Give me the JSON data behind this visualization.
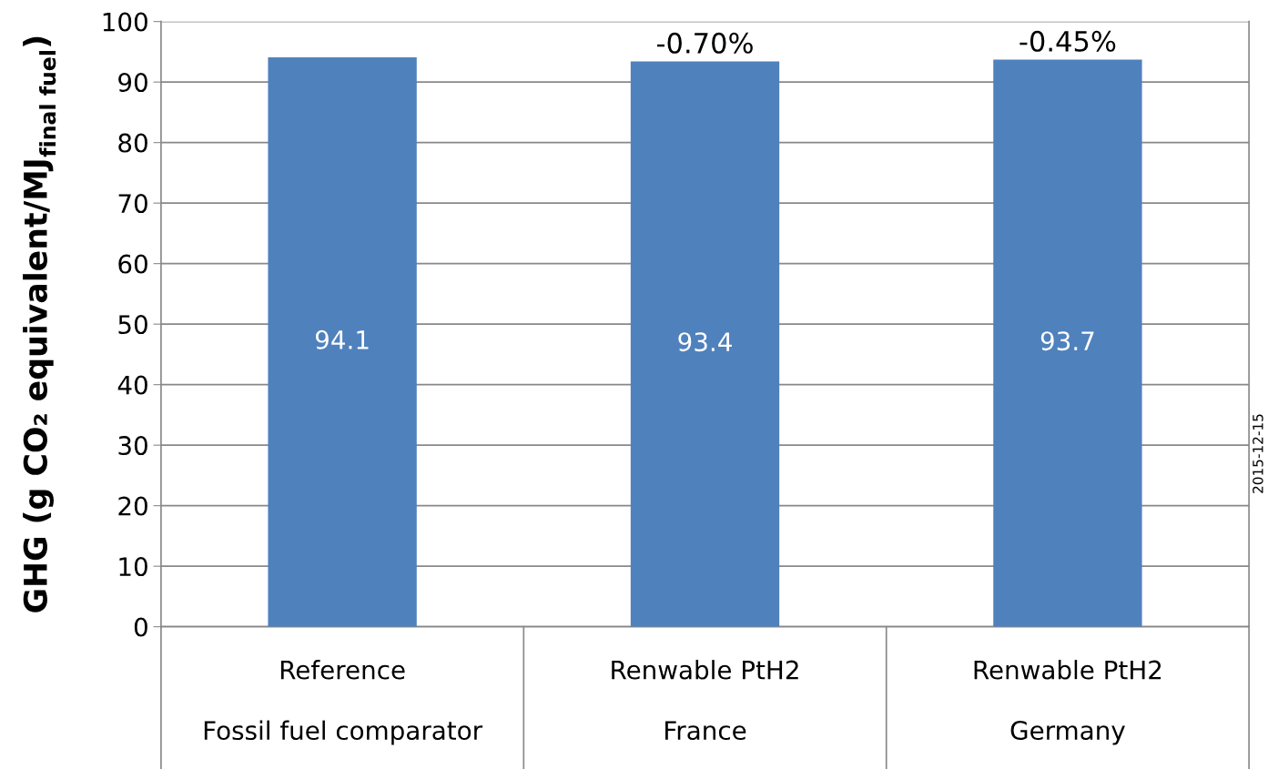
{
  "chart_data": {
    "type": "bar",
    "ylabel": "GHG (g CO₂ equivalent/MJ$_{final fuel}$)",
    "categories": [
      "Reference\nFossil fuel comparator",
      "Renwable PtH2\nFrance",
      "Renwable PtH2\nGermany"
    ],
    "values": [
      94.1,
      93.4,
      93.7
    ],
    "color": "#4f81bd",
    "ylim": [
      0,
      100
    ],
    "yticks": [
      0,
      10,
      20,
      30,
      40,
      50,
      60,
      70,
      80,
      90,
      100
    ],
    "grid": "y",
    "data_labels": true,
    "annotations": [
      {
        "text": "-0.70%",
        "x": "Renwable PtH2\nFrance",
        "y": 93.4
      },
      {
        "text": "-0.45%",
        "x": "Renwable PtH2\nGermany",
        "y": 93.7
      },
      "2015-12-15"
    ]
  }
}
